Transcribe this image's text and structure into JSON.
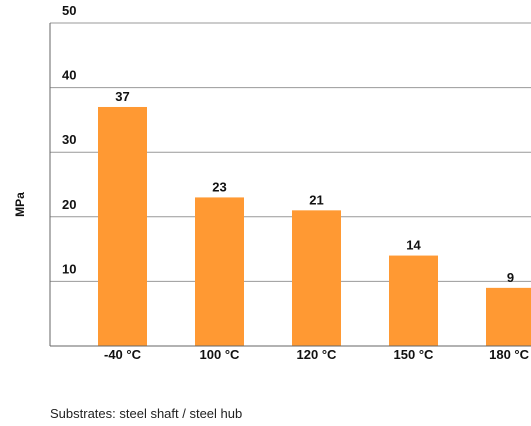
{
  "chart_data": {
    "type": "bar",
    "categories": [
      "-40 °C",
      "100 °C",
      "120 °C",
      "150 °C",
      "180 °C"
    ],
    "values": [
      37,
      23,
      21,
      14,
      9
    ],
    "data_labels": [
      "37",
      "23",
      "21",
      "14",
      "9"
    ],
    "ylabel": "MPa",
    "ylim": [
      0,
      50
    ],
    "yticks": [
      10,
      20,
      30,
      40,
      50
    ],
    "ytick_labels": [
      "10",
      "20",
      "30",
      "40",
      "50"
    ],
    "grid": true,
    "bar_color": "#FF9933",
    "grid_color": "#999999"
  },
  "footnote": "Substrates: steel shaft / steel hub"
}
